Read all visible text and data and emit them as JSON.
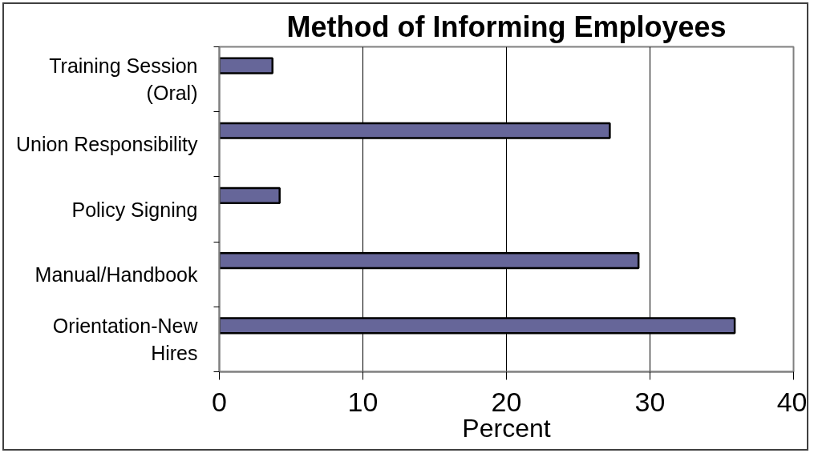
{
  "chart_data": {
    "type": "bar",
    "orientation": "horizontal",
    "title": "Method of Informing Employees",
    "xlabel": "Percent",
    "categories": [
      "Training Session\n(Oral)",
      "Union Responsibility",
      "Policy Signing",
      "Manual/Handbook",
      "Orientation-New\nHires"
    ],
    "values": [
      3.7,
      27.2,
      4.2,
      29.2,
      35.9
    ],
    "color": "#666699",
    "xlim": [
      0,
      40
    ],
    "xticks": [
      0,
      10,
      20,
      30,
      40
    ],
    "grid": "x"
  }
}
